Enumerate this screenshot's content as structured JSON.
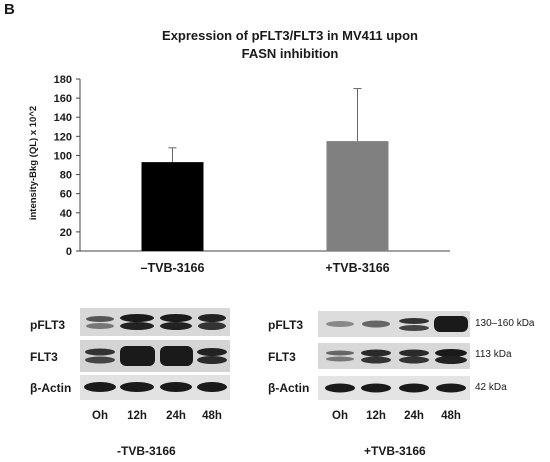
{
  "panel_label": "B",
  "chart_data": {
    "type": "bar",
    "title_line1": "Expression of pFLT3/FLT3 in MV411 upon",
    "title_line2": "FASN inhibition",
    "ylabel": "intensity-Bkg (QL) x 10^2",
    "xlabel": "",
    "ylim": [
      0,
      180
    ],
    "yticks": [
      0,
      20,
      40,
      60,
      80,
      100,
      120,
      140,
      160,
      180
    ],
    "categories": [
      "–TVB-3166",
      "+TVB-3166"
    ],
    "values": [
      93,
      115
    ],
    "error_upper": [
      108,
      170
    ],
    "bar_colors": [
      "#000000",
      "#808080"
    ],
    "grid": false
  },
  "blots": {
    "left": {
      "rows": [
        "pFLT3",
        "FLT3",
        "β-Actin"
      ],
      "timepoints": [
        "Oh",
        "12h",
        "24h",
        "48h"
      ],
      "condition": "-TVB-3166"
    },
    "right": {
      "rows": [
        "pFLT3",
        "FLT3",
        "β-Actin"
      ],
      "timepoints": [
        "Oh",
        "12h",
        "24h",
        "48h"
      ],
      "condition": "+TVB-3166",
      "sizes": [
        "130–160 kDa",
        "113 kDa",
        "42 kDa"
      ]
    }
  }
}
